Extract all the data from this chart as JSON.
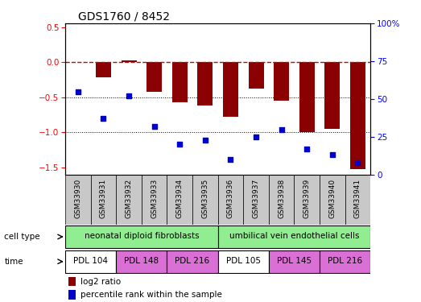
{
  "title": "GDS1760 / 8452",
  "samples": [
    "GSM33930",
    "GSM33931",
    "GSM33932",
    "GSM33933",
    "GSM33934",
    "GSM33935",
    "GSM33936",
    "GSM33937",
    "GSM33938",
    "GSM33939",
    "GSM33940",
    "GSM33941"
  ],
  "log2_ratio": [
    0.0,
    -0.22,
    0.02,
    -0.42,
    -0.57,
    -0.62,
    -0.78,
    -0.38,
    -0.55,
    -1.0,
    -0.95,
    -1.52
  ],
  "percentile_rank": [
    55,
    37,
    52,
    32,
    20,
    23,
    10,
    25,
    30,
    17,
    13,
    8
  ],
  "cell_groups": [
    {
      "label": "neonatal diploid fibroblasts",
      "start": 0,
      "end": 5,
      "color": "#90ee90"
    },
    {
      "label": "umbilical vein endothelial cells",
      "start": 6,
      "end": 11,
      "color": "#90ee90"
    }
  ],
  "time_groups": [
    {
      "label": "PDL 104",
      "start": 0,
      "end": 1,
      "color": "#ffffff"
    },
    {
      "label": "PDL 148",
      "start": 2,
      "end": 3,
      "color": "#da70d6"
    },
    {
      "label": "PDL 216",
      "start": 4,
      "end": 5,
      "color": "#da70d6"
    },
    {
      "label": "PDL 105",
      "start": 6,
      "end": 7,
      "color": "#ffffff"
    },
    {
      "label": "PDL 145",
      "start": 8,
      "end": 9,
      "color": "#da70d6"
    },
    {
      "label": "PDL 216",
      "start": 10,
      "end": 11,
      "color": "#da70d6"
    }
  ],
  "bar_color": "#8b0000",
  "dot_color": "#0000cd",
  "ylim_left": [
    -1.6,
    0.55
  ],
  "ylim_right": [
    0,
    100
  ],
  "yticks_left": [
    -1.5,
    -1.0,
    -0.5,
    0.0,
    0.5
  ],
  "yticks_right": [
    0,
    25,
    50,
    75,
    100
  ],
  "sample_box_color": "#c8c8c8",
  "zero_line_color": "#cc0000",
  "title_fontsize": 10
}
